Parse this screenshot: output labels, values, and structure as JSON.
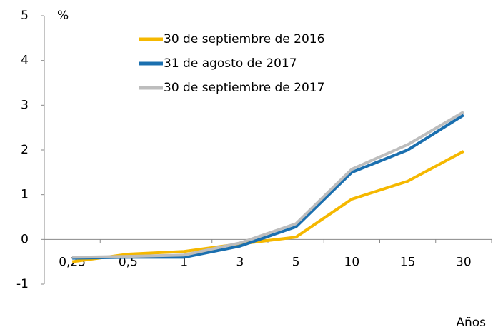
{
  "chart_data": {
    "type": "line",
    "y_label": "%",
    "x_label": "Años",
    "categories": [
      "0,25",
      "0,5",
      "1",
      "3",
      "5",
      "10",
      "15",
      "30"
    ],
    "series": [
      {
        "name": "30 de septiembre de 2016",
        "color": "#f5b800",
        "values": [
          -0.5,
          -0.33,
          -0.27,
          -0.1,
          0.05,
          0.9,
          1.3,
          1.97
        ]
      },
      {
        "name": "31 de agosto de 2017",
        "color": "#1a6faf",
        "values": [
          -0.42,
          -0.4,
          -0.4,
          -0.15,
          0.28,
          1.5,
          2.0,
          2.78
        ]
      },
      {
        "name": "30 de septiembre de 2017",
        "color": "#bdbdbd",
        "values": [
          -0.4,
          -0.38,
          -0.35,
          -0.08,
          0.35,
          1.57,
          2.12,
          2.85
        ]
      }
    ],
    "ylim": [
      -1,
      5
    ],
    "yticks": [
      -1,
      0,
      1,
      2,
      3,
      4,
      5
    ],
    "grid": false,
    "legend": "top"
  }
}
